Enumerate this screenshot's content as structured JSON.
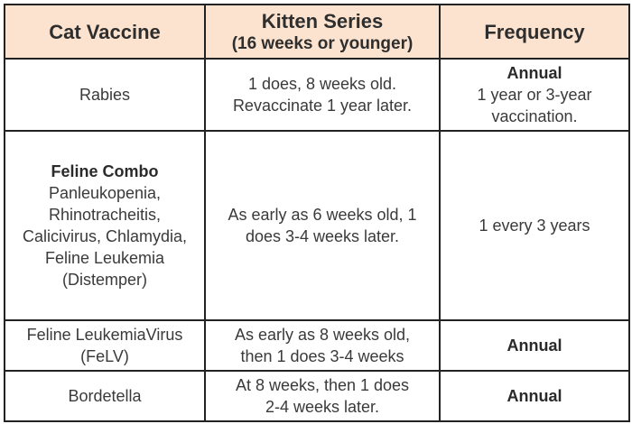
{
  "table": {
    "headers": {
      "vaccine": "Cat Vaccine",
      "kitten_series": "Kitten Series",
      "kitten_series_sub": "(16 weeks or younger)",
      "frequency": "Frequency"
    },
    "rows": [
      {
        "vaccine": [
          "Rabies"
        ],
        "vaccine_bold": "",
        "kitten_series": [
          "1 does, 8 weeks old.",
          "Revaccinate 1 year later."
        ],
        "frequency_bold": "Annual",
        "frequency": [
          "1 year or 3-year",
          "vaccination."
        ]
      },
      {
        "vaccine_bold": "Feline Combo",
        "vaccine": [
          "Panleukopenia,",
          "Rhinotracheitis,",
          "Calicivirus, Chlamydia,",
          "Feline Leukemia",
          "(Distemper)"
        ],
        "kitten_series": [
          "As early as 6 weeks old, 1",
          "does 3-4 weeks later."
        ],
        "frequency_bold": "",
        "frequency": [
          "1 every 3 years"
        ]
      },
      {
        "vaccine": [
          "Feline LeukemiaVirus",
          "(FeLV)"
        ],
        "vaccine_bold": "",
        "kitten_series": [
          "As early as 8 weeks old,",
          "then 1 does 3-4 weeks"
        ],
        "frequency_bold": "Annual",
        "frequency": []
      },
      {
        "vaccine": [
          "Bordetella"
        ],
        "vaccine_bold": "",
        "kitten_series": [
          "At 8 weeks, then 1 does",
          "2-4 weeks later."
        ],
        "frequency_bold": "Annual",
        "frequency": []
      }
    ]
  },
  "colors": {
    "header_background": "#fbe3cf",
    "border": "#222222",
    "text": "#3a3a3a"
  }
}
